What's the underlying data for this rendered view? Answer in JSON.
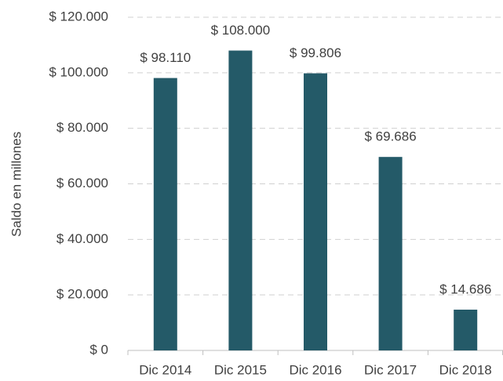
{
  "chart_data": {
    "type": "bar",
    "y_label": "Saldo en millones",
    "categories": [
      "Dic 2014",
      "Dic 2015",
      "Dic 2016",
      "Dic 2017",
      "Dic 2018"
    ],
    "values": [
      98110,
      108000,
      99806,
      69686,
      14686
    ],
    "value_labels": [
      "$ 98.110",
      "$ 108.000",
      "$ 99.806",
      "$ 69.686",
      "$ 14.686"
    ],
    "color": "#245a68",
    "ylim": [
      0,
      120000
    ],
    "yticks": [
      {
        "value": 0,
        "label": "$ 0"
      },
      {
        "value": 20000,
        "label": "$ 20.000"
      },
      {
        "value": 40000,
        "label": "$ 40.000"
      },
      {
        "value": 60000,
        "label": "$ 60.000"
      },
      {
        "value": 80000,
        "label": "$ 80.000"
      },
      {
        "value": 100000,
        "label": "$ 100.000"
      },
      {
        "value": 120000,
        "label": "$ 120.000"
      }
    ],
    "grid": true
  }
}
